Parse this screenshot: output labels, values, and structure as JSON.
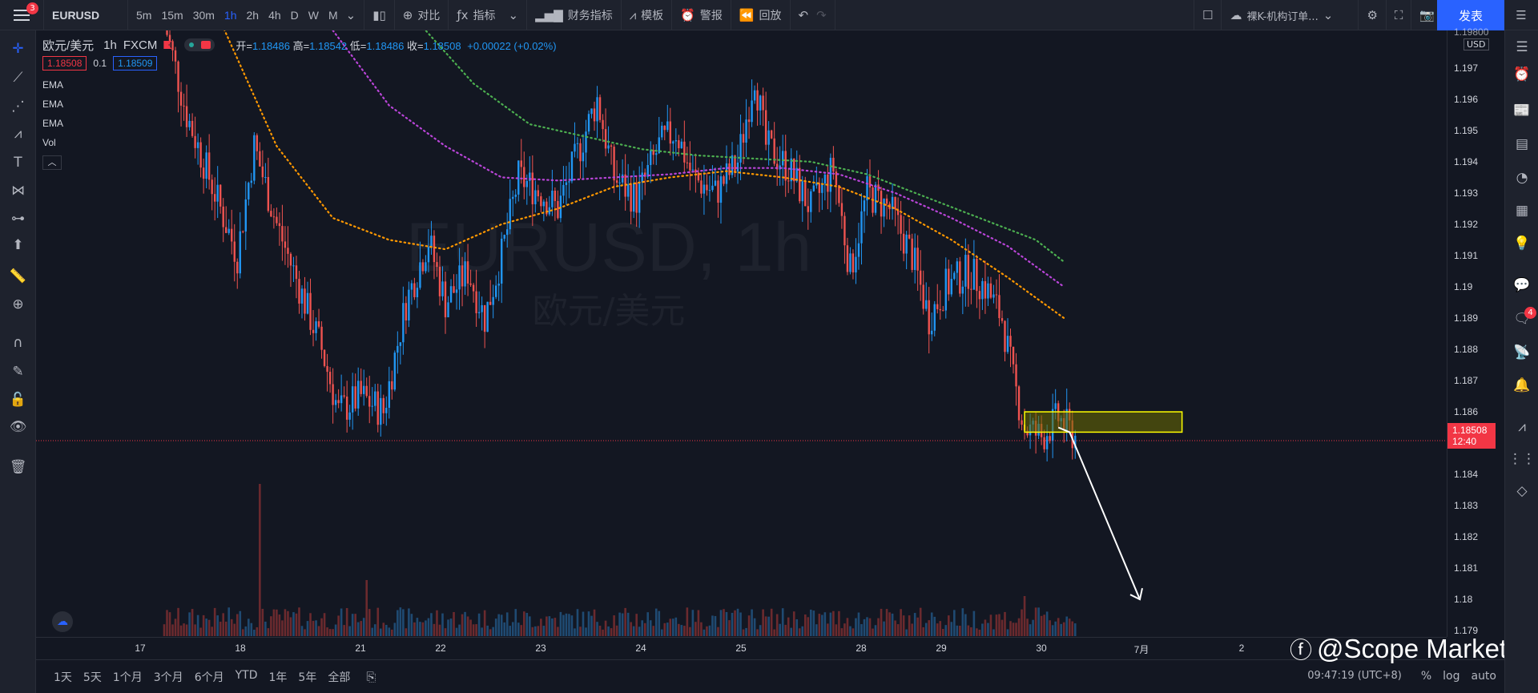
{
  "topbar": {
    "menu_badge": "3",
    "symbol": "EURUSD",
    "intervals": [
      "5m",
      "15m",
      "30m",
      "1h",
      "2h",
      "4h",
      "D",
      "W",
      "M"
    ],
    "active_interval": "1h",
    "compare": "对比",
    "indicators": "指标",
    "financials": "财务指标",
    "templates": "模板",
    "alerts": "警报",
    "replay": "回放",
    "layout_name": "裸K-机构订单...",
    "publish": "发表"
  },
  "legend": {
    "name": "欧元/美元",
    "interval": "1h",
    "exchange": "FXCM",
    "open_label": "开=",
    "open": "1.18486",
    "high_label": "高=",
    "high": "1.18542",
    "low_label": "低=",
    "low": "1.18486",
    "close_label": "收=",
    "close": "1.18508",
    "change": "+0.00022 (+0.02%)",
    "bid": "1.18508",
    "spread": "0.1",
    "ask": "1.18509",
    "indicators": [
      "EMA",
      "EMA",
      "EMA",
      "Vol"
    ],
    "collapse": "︿"
  },
  "watermark": {
    "title": "EURUSD, 1h",
    "subtitle": "欧元/美元"
  },
  "price_axis": {
    "currency": "USD",
    "top_partial": "1.19800",
    "last_price": "1.18508",
    "countdown": "12:40"
  },
  "right_badge": "4",
  "bottombar": {
    "ranges": [
      "1天",
      "5天",
      "1个月",
      "3个月",
      "6个月",
      "YTD",
      "1年",
      "5年",
      "全部"
    ],
    "clock": "09:47:19 (UTC+8)",
    "percent": "%",
    "log": "log",
    "auto": "auto",
    "brand": "@Scope Markets"
  },
  "colors": {
    "up": "#2196f3",
    "down": "#ef5350",
    "ema_fast": "#ff9800",
    "ema_mid": "#ba45d9",
    "ema_slow": "#4caf50",
    "zone_fill": "#6b6b00",
    "zone_border": "#ffff00"
  },
  "chart_data": {
    "type": "candlestick",
    "y_ticks": [
      1.197,
      1.196,
      1.195,
      1.194,
      1.193,
      1.192,
      1.191,
      1.19,
      1.189,
      1.188,
      1.187,
      1.186,
      1.185,
      1.184,
      1.183,
      1.182,
      1.181,
      1.18,
      1.179
    ],
    "ylim": [
      1.1788,
      1.1982
    ],
    "x_ticks": [
      "17",
      "18",
      "21",
      "22",
      "23",
      "24",
      "25",
      "28",
      "29",
      "30",
      "7月",
      "2"
    ],
    "anchors": [
      {
        "x": 0,
        "c": 1.1985
      },
      {
        "x": 8,
        "c": 1.1955
      },
      {
        "x": 18,
        "c": 1.193
      },
      {
        "x": 26,
        "c": 1.191
      },
      {
        "x": 32,
        "c": 1.1945
      },
      {
        "x": 40,
        "c": 1.192
      },
      {
        "x": 48,
        "c": 1.19
      },
      {
        "x": 56,
        "c": 1.188
      },
      {
        "x": 62,
        "c": 1.186
      },
      {
        "x": 70,
        "c": 1.1865
      },
      {
        "x": 78,
        "c": 1.186
      },
      {
        "x": 86,
        "c": 1.1895
      },
      {
        "x": 94,
        "c": 1.1915
      },
      {
        "x": 100,
        "c": 1.1895
      },
      {
        "x": 108,
        "c": 1.1905
      },
      {
        "x": 114,
        "c": 1.189
      },
      {
        "x": 120,
        "c": 1.191
      },
      {
        "x": 126,
        "c": 1.1935
      },
      {
        "x": 134,
        "c": 1.193
      },
      {
        "x": 140,
        "c": 1.1925
      },
      {
        "x": 148,
        "c": 1.1945
      },
      {
        "x": 154,
        "c": 1.196
      },
      {
        "x": 160,
        "c": 1.1935
      },
      {
        "x": 168,
        "c": 1.1928
      },
      {
        "x": 176,
        "c": 1.1945
      },
      {
        "x": 182,
        "c": 1.195
      },
      {
        "x": 188,
        "c": 1.1935
      },
      {
        "x": 196,
        "c": 1.193
      },
      {
        "x": 204,
        "c": 1.194
      },
      {
        "x": 210,
        "c": 1.1968
      },
      {
        "x": 214,
        "c": 1.1945
      },
      {
        "x": 222,
        "c": 1.1938
      },
      {
        "x": 230,
        "c": 1.1925
      },
      {
        "x": 238,
        "c": 1.1938
      },
      {
        "x": 244,
        "c": 1.1905
      },
      {
        "x": 250,
        "c": 1.193
      },
      {
        "x": 258,
        "c": 1.1925
      },
      {
        "x": 266,
        "c": 1.191
      },
      {
        "x": 272,
        "c": 1.189
      },
      {
        "x": 278,
        "c": 1.19
      },
      {
        "x": 286,
        "c": 1.1905
      },
      {
        "x": 292,
        "c": 1.19
      },
      {
        "x": 298,
        "c": 1.189
      },
      {
        "x": 302,
        "c": 1.187
      },
      {
        "x": 306,
        "c": 1.1855
      },
      {
        "x": 312,
        "c": 1.1852
      },
      {
        "x": 318,
        "c": 1.1858
      },
      {
        "x": 324,
        "c": 1.1852
      }
    ],
    "ema_fast": [
      [
        20,
        1.1985
      ],
      [
        40,
        1.1945
      ],
      [
        60,
        1.1922
      ],
      [
        80,
        1.1915
      ],
      [
        100,
        1.1912
      ],
      [
        120,
        1.192
      ],
      [
        140,
        1.1925
      ],
      [
        160,
        1.1932
      ],
      [
        180,
        1.1935
      ],
      [
        200,
        1.1937
      ],
      [
        220,
        1.1935
      ],
      [
        240,
        1.1932
      ],
      [
        260,
        1.1925
      ],
      [
        280,
        1.1915
      ],
      [
        300,
        1.1903
      ],
      [
        320,
        1.189
      ]
    ],
    "ema_mid": [
      [
        60,
        1.1982
      ],
      [
        80,
        1.1958
      ],
      [
        100,
        1.1945
      ],
      [
        120,
        1.1935
      ],
      [
        140,
        1.1934
      ],
      [
        160,
        1.1935
      ],
      [
        180,
        1.1936
      ],
      [
        200,
        1.1938
      ],
      [
        220,
        1.1938
      ],
      [
        240,
        1.1936
      ],
      [
        260,
        1.193
      ],
      [
        280,
        1.1922
      ],
      [
        300,
        1.1913
      ],
      [
        320,
        1.19
      ]
    ],
    "ema_slow": [
      [
        90,
        1.1985
      ],
      [
        110,
        1.1965
      ],
      [
        130,
        1.1952
      ],
      [
        150,
        1.1948
      ],
      [
        170,
        1.1944
      ],
      [
        190,
        1.1942
      ],
      [
        210,
        1.1941
      ],
      [
        230,
        1.194
      ],
      [
        250,
        1.1936
      ],
      [
        270,
        1.1929
      ],
      [
        290,
        1.1922
      ],
      [
        310,
        1.1915
      ],
      [
        320,
        1.1908
      ]
    ],
    "zone": {
      "x0": 306,
      "x1": 362,
      "y0": 1.186,
      "y1": 1.18535
    },
    "arrow": [
      [
        318,
        1.1855
      ],
      [
        322,
        1.18535
      ],
      [
        347,
        1.18
      ]
    ],
    "last_line": 1.18508
  }
}
